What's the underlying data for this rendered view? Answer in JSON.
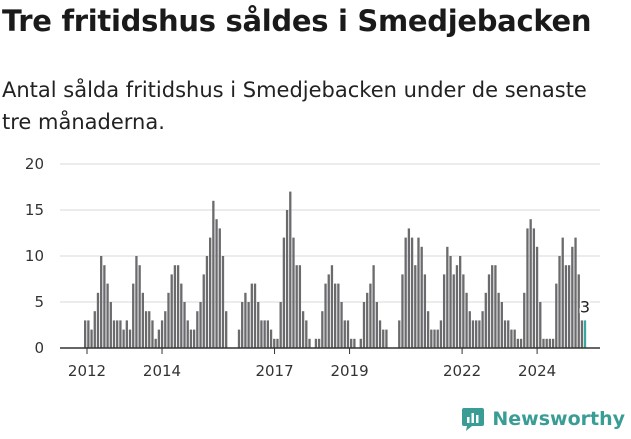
{
  "title": "Tre fritidshus såldes i Smedjebacken",
  "subtitle": "Antal sålda fritidshus i Smedjebacken under de senaste tre månaderna.",
  "brand": {
    "name": "Newsworthy",
    "icon": "newsworthy-logo-icon",
    "color": "#3a9d95"
  },
  "colors": {
    "bar": "#6b6b6e",
    "highlight": "#3aa69d",
    "grid": "#d9d9d9",
    "axis": "#333333"
  },
  "chart_data": {
    "type": "bar",
    "title": "",
    "xlabel": "",
    "ylabel": "",
    "ylim": [
      0,
      20
    ],
    "yticks": [
      0,
      5,
      10,
      15,
      20
    ],
    "xticks": [
      {
        "label": "2012",
        "x": 2012.0
      },
      {
        "label": "2014",
        "x": 2014.0
      },
      {
        "label": "2017",
        "x": 2017.0
      },
      {
        "label": "2019",
        "x": 2019.0
      },
      {
        "label": "2022",
        "x": 2022.0
      },
      {
        "label": "2024",
        "x": 2024.0
      }
    ],
    "x_start": 2011.92,
    "x_end": 2025.25,
    "grid": true,
    "series": [
      {
        "values": [
          3,
          3,
          2,
          4,
          6,
          10,
          9,
          7,
          5,
          3,
          3,
          3,
          2,
          3,
          2,
          7,
          10,
          9,
          6,
          4,
          4,
          3,
          1,
          2,
          3,
          4,
          6,
          8,
          9,
          9,
          7,
          5,
          3,
          2,
          2,
          4,
          5,
          8,
          10,
          12,
          16,
          14,
          13,
          10,
          4,
          0,
          0,
          0,
          2,
          5,
          6,
          5,
          7,
          7,
          5,
          3,
          3,
          3,
          2,
          1,
          1,
          5,
          12,
          15,
          17,
          12,
          9,
          9,
          4,
          3,
          1,
          0,
          1,
          1,
          4,
          7,
          8,
          9,
          7,
          7,
          5,
          3,
          3,
          1,
          1,
          0,
          1,
          5,
          6,
          7,
          9,
          5,
          3,
          2,
          2,
          0,
          0,
          0,
          3,
          8,
          12,
          13,
          12,
          9,
          12,
          11,
          8,
          4,
          2,
          2,
          2,
          3,
          8,
          11,
          10,
          8,
          9,
          10,
          8,
          6,
          4,
          3,
          3,
          3,
          4,
          6,
          8,
          9,
          9,
          6,
          5,
          3,
          3,
          2,
          2,
          1,
          1,
          6,
          13,
          14,
          13,
          11,
          5,
          1,
          1,
          1,
          1,
          7,
          10,
          12,
          9,
          9,
          11,
          12,
          8,
          3
        ],
        "last_value": 3,
        "last_label": "3"
      }
    ]
  }
}
